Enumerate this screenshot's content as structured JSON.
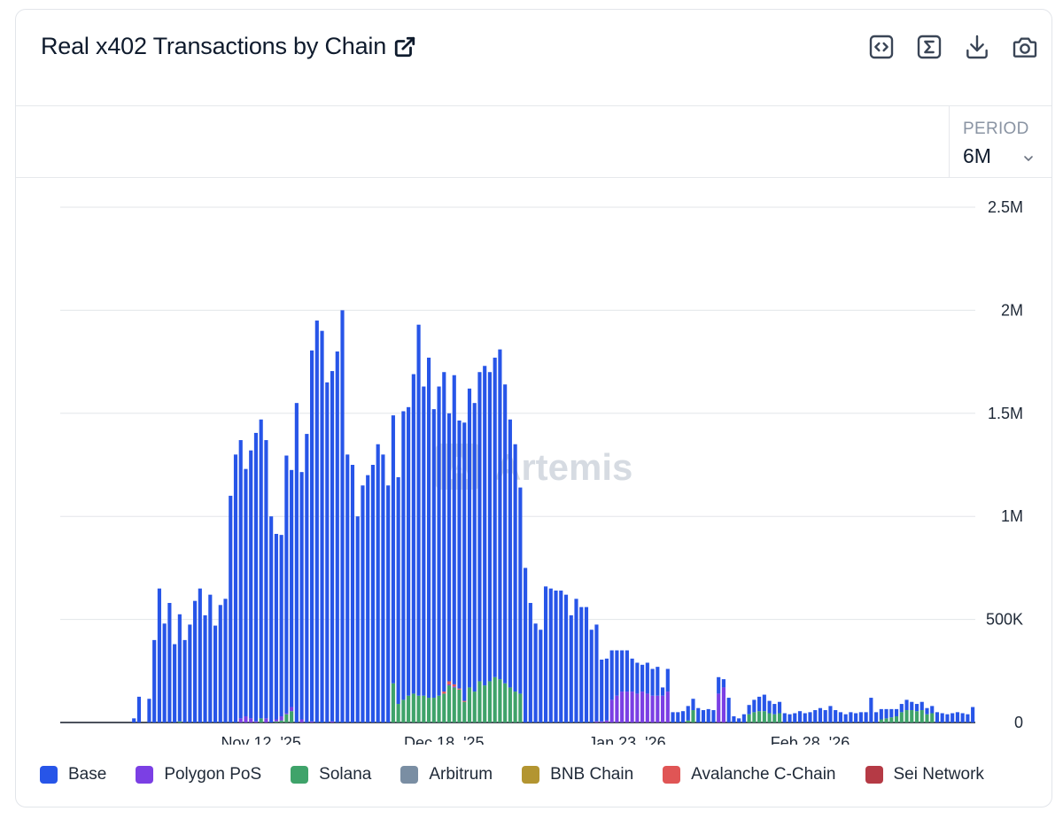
{
  "header": {
    "title": "Real x402 Transactions by Chain",
    "toolbar": [
      "embed-icon",
      "sigma-icon",
      "download-icon",
      "camera-icon"
    ]
  },
  "period": {
    "label": "PERIOD",
    "value": "6M"
  },
  "watermark": "Artemis",
  "chart_data": {
    "type": "bar",
    "stacked": true,
    "title": "Real x402 Transactions by Chain",
    "xlabel": "",
    "ylabel": "",
    "ylim": [
      0,
      2500000
    ],
    "yticks": [
      0,
      500000,
      1000000,
      1500000,
      2000000,
      2500000
    ],
    "ytick_labels": [
      "0",
      "500K",
      "1M",
      "1.5M",
      "2M",
      "2.5M"
    ],
    "x_start": "2025-10-04",
    "x_tick_labels": [
      {
        "label": "Nov 12, '25",
        "day_index": 39
      },
      {
        "label": "Dec 18, '25",
        "day_index": 75
      },
      {
        "label": "Jan 23, '26",
        "day_index": 111
      },
      {
        "label": "Feb 28, '26",
        "day_index": 147
      }
    ],
    "series": [
      {
        "name": "Base",
        "color": "#2755e8",
        "values": [
          0,
          0,
          0,
          0,
          0,
          0,
          0,
          0,
          0,
          0,
          0,
          0,
          0,
          0,
          20000,
          125000,
          0,
          115000,
          400000,
          650000,
          480000,
          580000,
          380000,
          520000,
          400000,
          475000,
          590000,
          650000,
          520000,
          620000,
          470000,
          570000,
          600000,
          1100000,
          1300000,
          1350000,
          1200000,
          1300000,
          1400000,
          1450000,
          1350000,
          1000000,
          900000,
          880000,
          1250000,
          1150000,
          1550000,
          1200000,
          1400000,
          1800000,
          1950000,
          1900000,
          1650000,
          1700000,
          1800000,
          2000000,
          1300000,
          1250000,
          1000000,
          1150000,
          1200000,
          1250000,
          1350000,
          1300000,
          1150000,
          1300000,
          1100000,
          1400000,
          1400000,
          1550000,
          1800000,
          1500000,
          1650000,
          1400000,
          1500000,
          1550000,
          1300000,
          1500000,
          1300000,
          1350000,
          1450000,
          1400000,
          1500000,
          1550000,
          1500000,
          1550000,
          1600000,
          1450000,
          1300000,
          1200000,
          1000000,
          750000,
          580000,
          480000,
          450000,
          660000,
          650000,
          640000,
          640000,
          620000,
          520000,
          600000,
          560000,
          560000,
          450000,
          470000,
          300000,
          300000,
          240000,
          220000,
          200000,
          200000,
          160000,
          150000,
          130000,
          150000,
          130000,
          140000,
          40000,
          110000,
          50000,
          50000,
          55000,
          70000,
          55000,
          70000,
          60000,
          65000,
          60000,
          80000,
          40000,
          120000,
          30000,
          20000,
          40000,
          45000,
          60000,
          70000,
          80000,
          60000,
          50000,
          55000,
          45000,
          40000,
          45000,
          55000,
          45000,
          50000,
          60000,
          70000,
          60000,
          80000,
          60000,
          50000,
          40000,
          50000,
          45000,
          50000,
          50000,
          120000,
          50000,
          50000,
          45000,
          40000,
          35000,
          40000,
          50000,
          40000,
          35000,
          40000,
          30000,
          35000,
          50000,
          45000,
          40000,
          45000,
          50000,
          45000,
          40000,
          75000
        ]
      },
      {
        "name": "Polygon PoS",
        "color": "#7b3fe4",
        "values": [
          0,
          0,
          0,
          0,
          0,
          0,
          0,
          0,
          0,
          0,
          0,
          0,
          0,
          0,
          0,
          0,
          0,
          0,
          0,
          0,
          0,
          0,
          0,
          0,
          0,
          0,
          0,
          0,
          0,
          0,
          0,
          0,
          0,
          0,
          0,
          20000,
          30000,
          20000,
          5000,
          0,
          20000,
          0,
          10000,
          20000,
          5000,
          20000,
          0,
          15000,
          0,
          5000,
          0,
          0,
          0,
          5000,
          0,
          0,
          0,
          0,
          0,
          0,
          0,
          0,
          0,
          0,
          0,
          0,
          0,
          0,
          0,
          0,
          0,
          0,
          0,
          0,
          0,
          0,
          5000,
          5000,
          0,
          0,
          0,
          0,
          0,
          0,
          0,
          0,
          0,
          0,
          0,
          0,
          0,
          0,
          0,
          0,
          0,
          0,
          0,
          0,
          0,
          0,
          0,
          0,
          0,
          0,
          0,
          5000,
          5000,
          10000,
          110000,
          130000,
          150000,
          150000,
          150000,
          140000,
          150000,
          140000,
          130000,
          130000,
          130000,
          150000,
          0,
          0,
          0,
          0,
          0,
          0,
          0,
          0,
          0,
          140000,
          170000,
          0,
          0,
          0,
          0,
          0,
          0,
          0,
          0,
          0,
          0,
          0,
          0,
          0,
          0,
          0,
          0,
          0,
          0,
          0,
          0,
          0,
          0,
          0,
          0,
          0,
          0,
          0,
          0,
          0,
          0,
          0,
          0,
          0,
          0,
          0,
          0,
          0,
          0,
          0,
          0,
          0,
          0,
          0,
          0,
          0,
          0,
          0,
          0,
          0,
          0
        ]
      },
      {
        "name": "Solana",
        "color": "#3fa36a",
        "values": [
          0,
          0,
          0,
          0,
          0,
          0,
          0,
          0,
          0,
          0,
          0,
          0,
          0,
          0,
          0,
          0,
          0,
          0,
          0,
          0,
          0,
          0,
          0,
          5000,
          0,
          0,
          0,
          0,
          0,
          0,
          0,
          0,
          0,
          0,
          0,
          0,
          0,
          0,
          0,
          20000,
          0,
          0,
          5000,
          10000,
          40000,
          55000,
          0,
          0,
          0,
          0,
          0,
          0,
          0,
          0,
          0,
          0,
          0,
          0,
          0,
          0,
          0,
          0,
          0,
          0,
          0,
          190000,
          90000,
          110000,
          130000,
          140000,
          130000,
          130000,
          120000,
          120000,
          130000,
          140000,
          180000,
          170000,
          160000,
          100000,
          170000,
          150000,
          200000,
          180000,
          200000,
          220000,
          210000,
          190000,
          170000,
          150000,
          140000,
          0,
          0,
          0,
          0,
          0,
          0,
          0,
          0,
          0,
          0,
          0,
          0,
          0,
          0,
          0,
          0,
          0,
          0,
          0,
          0,
          0,
          0,
          0,
          0,
          0,
          0,
          0,
          0,
          0,
          0,
          0,
          0,
          10000,
          60000,
          0,
          0,
          0,
          0,
          0,
          0,
          0,
          0,
          0,
          0,
          40000,
          50000,
          55000,
          55000,
          45000,
          40000,
          45000,
          0,
          0,
          0,
          0,
          0,
          0,
          0,
          0,
          0,
          0,
          0,
          0,
          0,
          0,
          0,
          0,
          0,
          0,
          0,
          15000,
          20000,
          25000,
          30000,
          50000,
          60000,
          60000,
          55000,
          60000,
          40000,
          45000,
          0,
          0,
          0,
          0,
          0,
          0,
          0,
          0,
          0,
          0,
          0,
          0,
          0,
          0,
          0,
          0,
          0,
          0,
          0
        ]
      },
      {
        "name": "Arbitrum",
        "color": "#7a8ea3",
        "values": []
      },
      {
        "name": "BNB Chain",
        "color": "#b39531",
        "values": []
      },
      {
        "name": "Avalanche C-Chain",
        "color": "#e05555",
        "values": [
          0,
          0,
          0,
          0,
          0,
          0,
          0,
          0,
          0,
          0,
          0,
          0,
          0,
          0,
          0,
          0,
          0,
          0,
          0,
          0,
          0,
          0,
          0,
          0,
          0,
          0,
          0,
          0,
          0,
          0,
          0,
          0,
          0,
          0,
          0,
          0,
          0,
          0,
          0,
          0,
          0,
          0,
          0,
          0,
          0,
          0,
          0,
          0,
          0,
          0,
          0,
          0,
          0,
          0,
          0,
          0,
          0,
          0,
          0,
          0,
          0,
          0,
          0,
          0,
          0,
          0,
          0,
          0,
          0,
          0,
          0,
          0,
          0,
          0,
          0,
          10000,
          15000,
          10000,
          5000,
          5000,
          0,
          0,
          0,
          0,
          0,
          0,
          0,
          0,
          0,
          0,
          0,
          0,
          0,
          0,
          0,
          0,
          0,
          0,
          0,
          0,
          0,
          0,
          0,
          0,
          0,
          0,
          0,
          0,
          0,
          0,
          0,
          0,
          0,
          0,
          0,
          0,
          0,
          0,
          0,
          0,
          0,
          0,
          0,
          0,
          0,
          0,
          0,
          0,
          0,
          0,
          0,
          0,
          0,
          0,
          0,
          0,
          0,
          0,
          0,
          0,
          0,
          0,
          0,
          0,
          0,
          0,
          0,
          0,
          0,
          0,
          0,
          0,
          0,
          0,
          0,
          0,
          0,
          0,
          0,
          0,
          0,
          0,
          0,
          0,
          0,
          0,
          0,
          0,
          0,
          0,
          0,
          0,
          0,
          0,
          0,
          0,
          0,
          0,
          0,
          0,
          0,
          0,
          0,
          0,
          0,
          0,
          0,
          0,
          0,
          0
        ]
      },
      {
        "name": "Sei Network",
        "color": "#b53a45",
        "values": []
      }
    ]
  }
}
